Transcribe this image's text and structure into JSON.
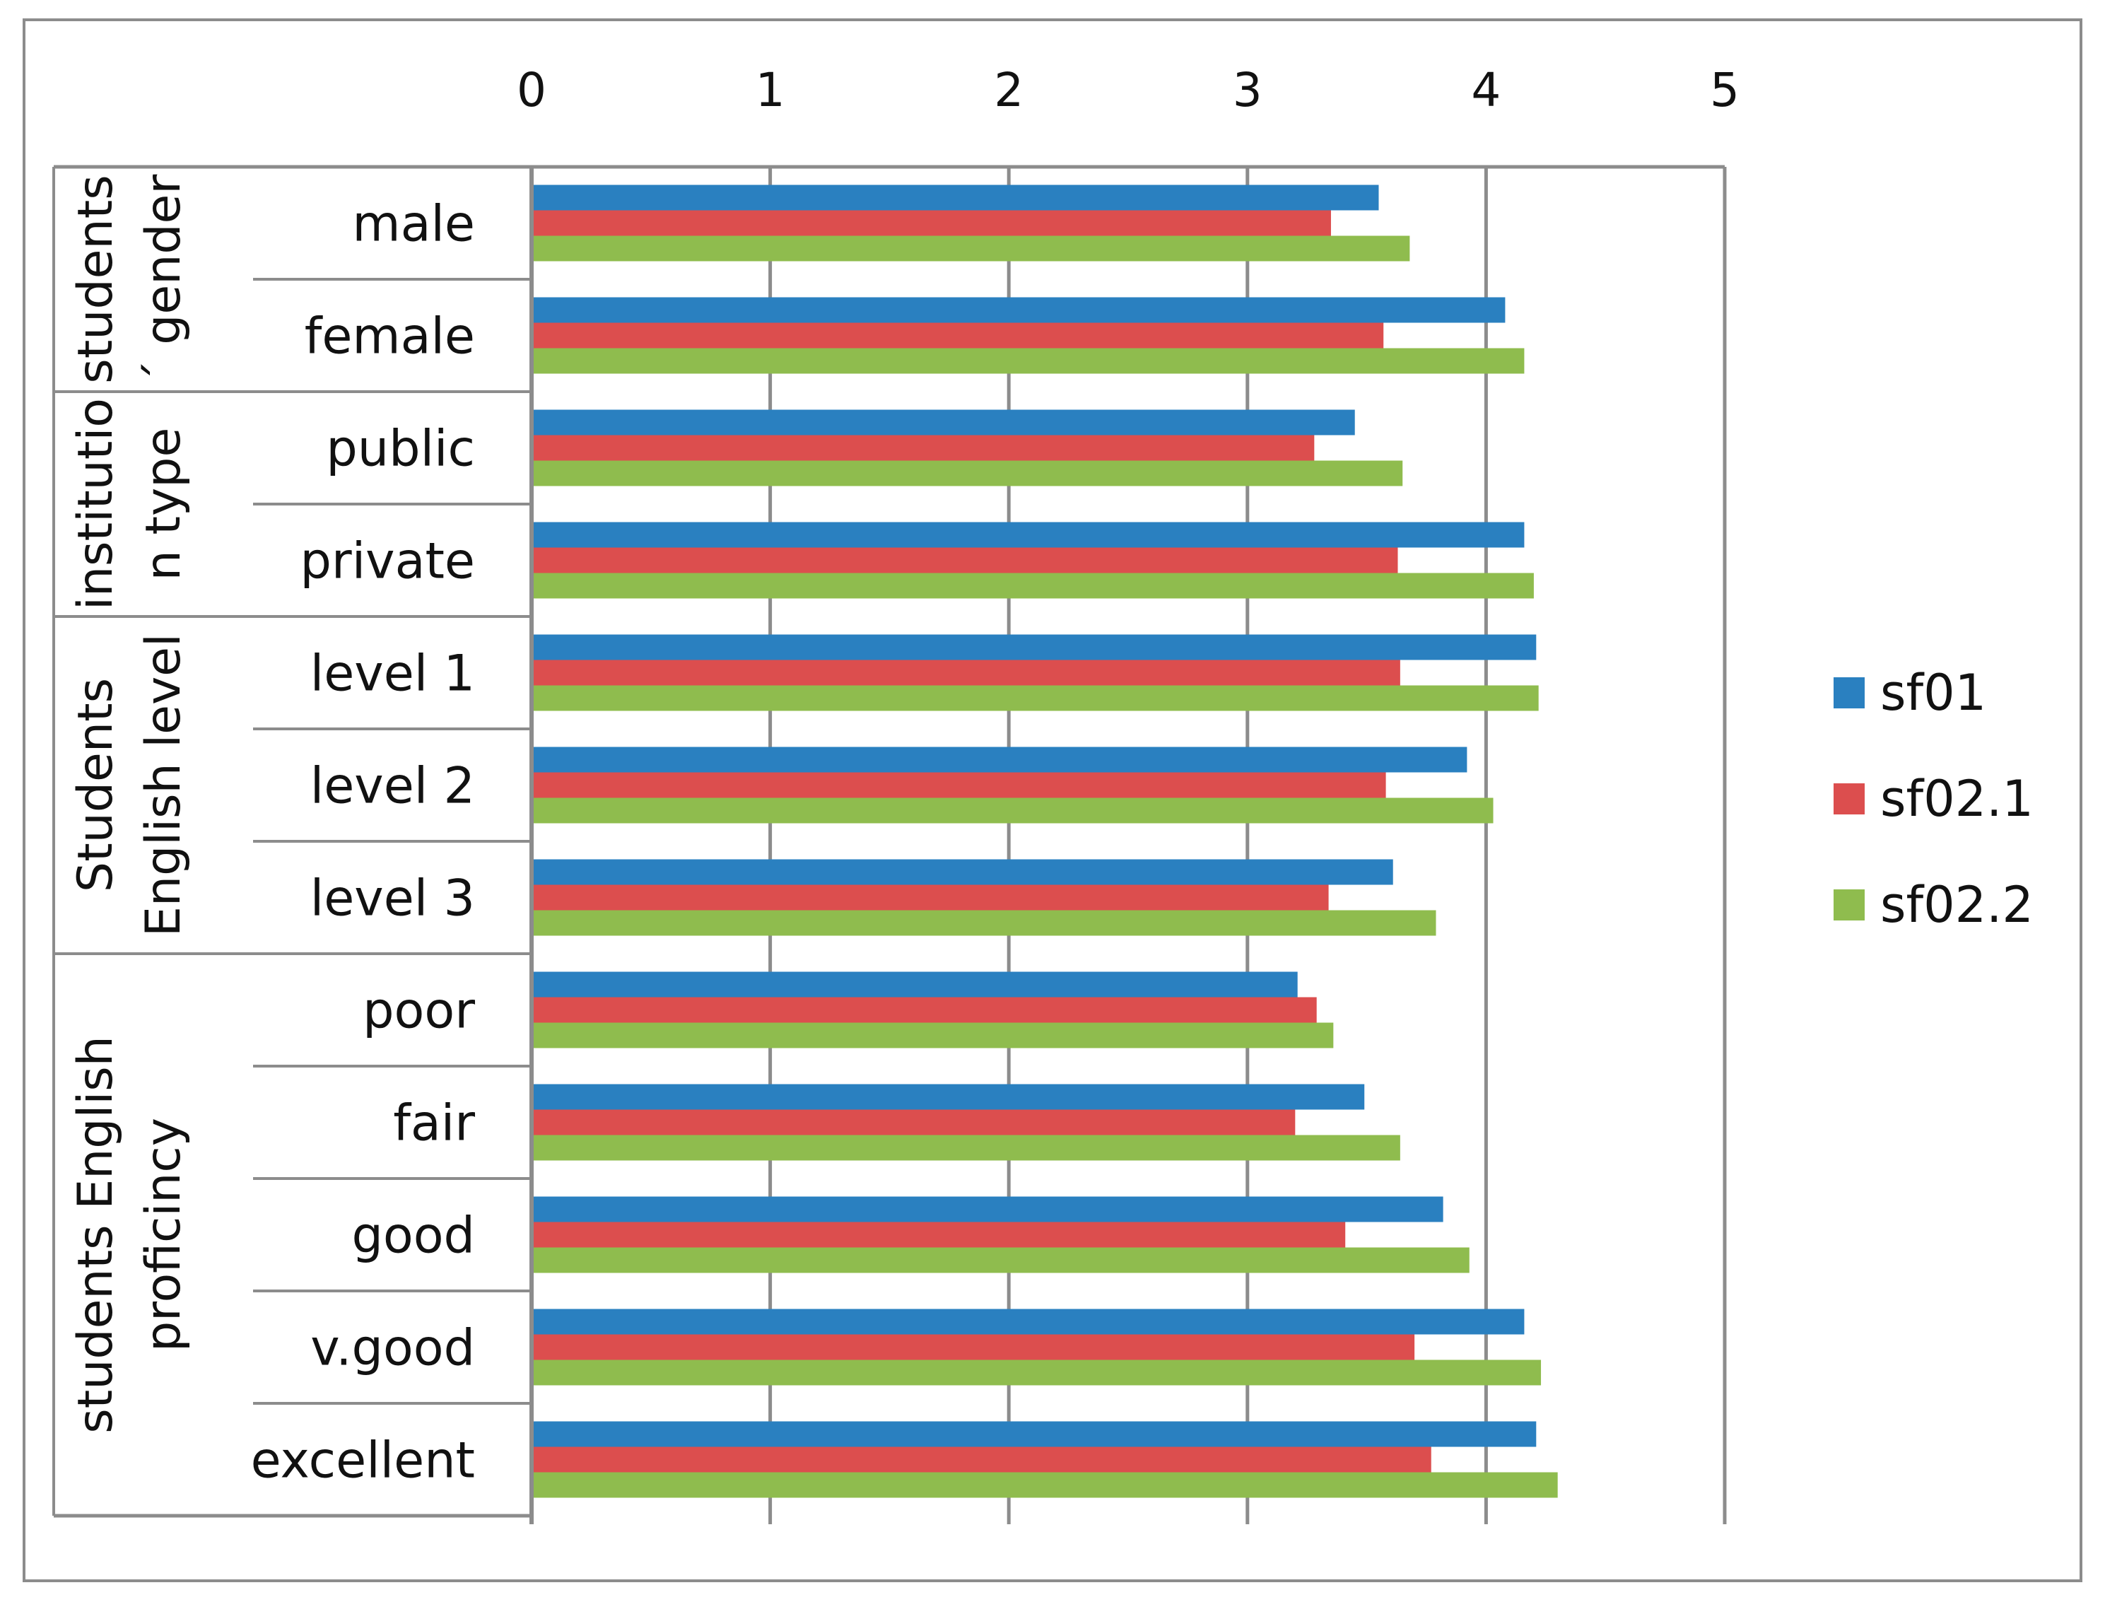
{
  "chart_data": {
    "type": "bar",
    "orientation": "horizontal",
    "title": "",
    "xlabel": "",
    "ylabel": "",
    "xlim": [
      0,
      5
    ],
    "x_ticks": [
      "0",
      "1",
      "2",
      "3",
      "4",
      "5"
    ],
    "grid": true,
    "legend_position": "right",
    "groups": [
      {
        "label_lines": [
          "students",
          "´ gender"
        ],
        "categories": [
          "male",
          "female"
        ]
      },
      {
        "label_lines": [
          "institutio",
          "n type"
        ],
        "categories": [
          "public",
          "private"
        ]
      },
      {
        "label_lines": [
          "Students",
          "English level"
        ],
        "categories": [
          "level 1",
          "level 2",
          "level 3"
        ]
      },
      {
        "label_lines": [
          "students English",
          "proficincy"
        ],
        "categories": [
          "poor",
          "fair",
          "good",
          "v.good",
          "excellent"
        ]
      }
    ],
    "categories": [
      "male",
      "female",
      "public",
      "private",
      "level 1",
      "level 2",
      "level 3",
      "poor",
      "fair",
      "good",
      "v.good",
      "excellent"
    ],
    "series": [
      {
        "name": "sf01",
        "color": "#2a80c0",
        "values": [
          3.55,
          4.08,
          3.45,
          4.16,
          4.21,
          3.92,
          3.61,
          3.21,
          3.49,
          3.82,
          4.16,
          4.21
        ]
      },
      {
        "name": "sf02.1",
        "color": "#dc4e4e",
        "values": [
          3.35,
          3.57,
          3.28,
          3.63,
          3.64,
          3.58,
          3.34,
          3.29,
          3.2,
          3.41,
          3.7,
          3.77
        ]
      },
      {
        "name": "sf02.2",
        "color": "#8fbc4e",
        "values": [
          3.68,
          4.16,
          3.65,
          4.2,
          4.22,
          4.03,
          3.79,
          3.36,
          3.64,
          3.93,
          4.23,
          4.3
        ]
      }
    ]
  }
}
